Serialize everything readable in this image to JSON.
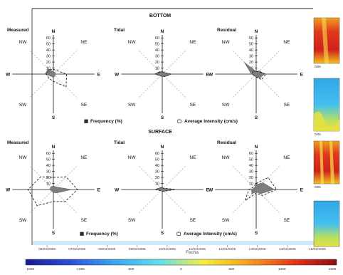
{
  "chart_data": [
    {
      "type": "radar",
      "section": "BOTTOM",
      "panel_label": "Measured",
      "directions": [
        "N",
        "NE",
        "E",
        "SE",
        "S",
        "SW",
        "W",
        "NW"
      ],
      "radial_ticks": [
        "10",
        "20",
        "30",
        "40",
        "50",
        "60"
      ],
      "rmax": 65,
      "frequency": [
        4,
        4,
        3,
        4,
        6,
        5,
        14,
        12
      ],
      "intensity": [
        8,
        8,
        22,
        30,
        12,
        10,
        12,
        10
      ]
    },
    {
      "type": "radar",
      "section": "BOTTOM",
      "panel_label": "Tidal",
      "directions": [
        "N",
        "NE",
        "E",
        "SE",
        "S",
        "SW",
        "W",
        "NW"
      ],
      "radial_ticks": [
        "10",
        "20",
        "30",
        "40",
        "50",
        "60"
      ],
      "rmax": 65,
      "frequency": [
        4,
        4,
        16,
        6,
        4,
        4,
        13,
        6
      ],
      "intensity": [
        4,
        4,
        14,
        5,
        4,
        4,
        12,
        5
      ]
    },
    {
      "type": "radar",
      "section": "BOTTOM",
      "panel_label": "Residual",
      "directions": [
        "N",
        "NE",
        "E",
        "SE",
        "S",
        "SW",
        "W",
        "NW"
      ],
      "radial_ticks": [
        "10",
        "20",
        "30",
        "40",
        "50",
        "60"
      ],
      "rmax": 65,
      "frequency": [
        4,
        8,
        14,
        9,
        5,
        4,
        8,
        28
      ],
      "intensity": [
        4,
        6,
        16,
        13,
        5,
        4,
        6,
        8
      ]
    },
    {
      "type": "radar",
      "section": "SURFACE",
      "panel_label": "Measured",
      "directions": [
        "N",
        "NE",
        "E",
        "SE",
        "S",
        "SW",
        "W",
        "NW"
      ],
      "radial_ticks": [
        "10",
        "20",
        "30",
        "40",
        "50",
        "60"
      ],
      "rmax": 65,
      "frequency": [
        6,
        6,
        30,
        8,
        5,
        4,
        6,
        6
      ],
      "intensity": [
        20,
        30,
        40,
        28,
        20,
        38,
        42,
        30
      ]
    },
    {
      "type": "radar",
      "section": "SURFACE",
      "panel_label": "Tidal",
      "directions": [
        "N",
        "NE",
        "E",
        "SE",
        "S",
        "SW",
        "W",
        "NW"
      ],
      "radial_ticks": [
        "10",
        "20",
        "30",
        "40",
        "50",
        "60"
      ],
      "rmax": 65,
      "frequency": [
        3,
        3,
        22,
        4,
        3,
        3,
        12,
        4
      ],
      "intensity": [
        3,
        3,
        22,
        4,
        3,
        3,
        12,
        4
      ]
    },
    {
      "type": "radar",
      "section": "SURFACE",
      "panel_label": "Residual",
      "directions": [
        "N",
        "NE",
        "E",
        "SE",
        "S",
        "SW",
        "W",
        "NW"
      ],
      "radial_ticks": [
        "10",
        "20",
        "30",
        "40",
        "50",
        "60"
      ],
      "rmax": 65,
      "frequency": [
        8,
        16,
        30,
        10,
        4,
        10,
        8,
        4
      ],
      "intensity": [
        10,
        28,
        34,
        14,
        6,
        26,
        12,
        6
      ]
    }
  ],
  "titles": {
    "bottom": "BOTTOM",
    "surface": "SURFACE"
  },
  "legend": {
    "frequency_symbol": "▦",
    "frequency_label": "Frequency (%)",
    "intensity_symbol": "▢",
    "intensity_label": "Average Intensity (cm/s)"
  },
  "time_axis": {
    "title": "Fecha",
    "ticks": [
      "06/02/2005",
      "07/02/2005",
      "08/02/2005",
      "09/02/2005",
      "10/02/2005",
      "11/02/2005",
      "12/02/2005",
      "13/02/2005",
      "14/02/2005",
      "15/02/2005"
    ]
  },
  "colorbar": {
    "ticks": [
      "-1500",
      "-1000",
      "-500",
      "0",
      "500",
      "1000",
      "1500"
    ],
    "stops": [
      "#1a1a8c",
      "#2a4fd8",
      "#39a6ef",
      "#5fe0f0",
      "#f6ef3c",
      "#f7a11c",
      "#e5391c",
      "#8b0f12"
    ]
  },
  "thumbnails": {
    "caption": "0/05"
  },
  "colors": {
    "fill": "#7d7d7d",
    "axis": "#111111",
    "spoke": "#b0b0b0"
  }
}
